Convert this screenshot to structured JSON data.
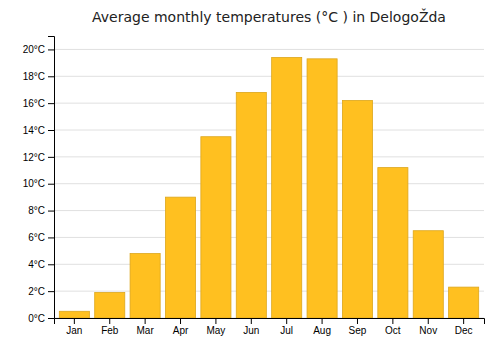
{
  "chart_data": {
    "type": "bar",
    "title": "Average monthly temperatures (°C ) in DelogoŽda",
    "categories": [
      "Jan",
      "Feb",
      "Mar",
      "Apr",
      "May",
      "Jun",
      "Jul",
      "Aug",
      "Sep",
      "Oct",
      "Nov",
      "Dec"
    ],
    "values": [
      0.5,
      1.9,
      4.8,
      9.0,
      13.5,
      16.8,
      19.4,
      19.3,
      16.2,
      11.2,
      6.5,
      2.3
    ],
    "color": "#FFC020",
    "ylim": [
      0,
      21
    ],
    "yticks": [
      {
        "value": 0,
        "label": "0°C"
      },
      {
        "value": 2,
        "label": "2°C"
      },
      {
        "value": 4,
        "label": "4°C"
      },
      {
        "value": 6,
        "label": "6°C"
      },
      {
        "value": 8,
        "label": "8°C"
      },
      {
        "value": 10,
        "label": "10°C"
      },
      {
        "value": 12,
        "label": "12°C"
      },
      {
        "value": 14,
        "label": "14°C"
      },
      {
        "value": 16,
        "label": "16°C"
      },
      {
        "value": 18,
        "label": "18°C"
      },
      {
        "value": 20,
        "label": "20°C"
      }
    ],
    "grid": true
  }
}
